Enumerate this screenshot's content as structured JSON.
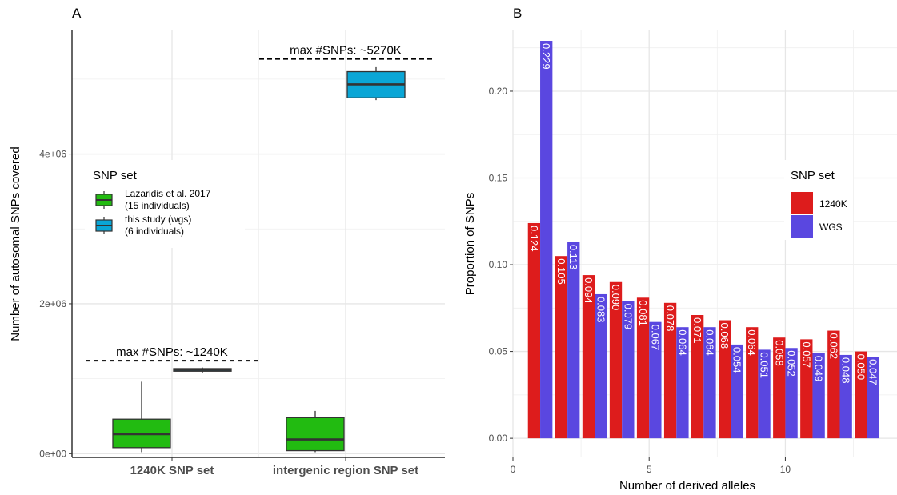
{
  "chart_data": [
    {
      "panel": "A",
      "type": "boxplot",
      "ylabel": "Number of autosomal SNPs covered",
      "ylim": [
        -50000,
        5650000
      ],
      "yticks": [
        0,
        2000000,
        4000000
      ],
      "ytick_labels": [
        "0e+00",
        "2e+06",
        "4e+06"
      ],
      "categories": [
        "1240K SNP set",
        "intergenic region SNP set"
      ],
      "grid": true,
      "legend": {
        "title": "SNP set",
        "placement": "left-middle",
        "entries": [
          {
            "line1": "Lazaridis et al. 2017",
            "line2": "(15 individuals)",
            "color": "#22bb11"
          },
          {
            "line1": "this study (wgs)",
            "line2": "(6 individuals)",
            "color": "#0aa6d6"
          }
        ]
      },
      "series": [
        {
          "legend_index": 0,
          "color": "#22bb11",
          "boxes": [
            {
              "category": 0,
              "min": 20000,
              "q1": 80000,
              "median": 260000,
              "q3": 460000,
              "max": 960000
            },
            {
              "category": 1,
              "min": 20000,
              "q1": 40000,
              "median": 190000,
              "q3": 480000,
              "max": 570000
            }
          ]
        },
        {
          "legend_index": 1,
          "color": "#0aa6d6",
          "boxes": [
            {
              "category": 0,
              "min": 1080000,
              "q1": 1100000,
              "median": 1120000,
              "q3": 1135000,
              "max": 1150000
            },
            {
              "category": 1,
              "min": 4720000,
              "q1": 4750000,
              "median": 4930000,
              "q3": 5100000,
              "max": 5160000
            }
          ]
        }
      ],
      "annotations": [
        {
          "text": "max #SNPs: ~1240K",
          "category": 0,
          "y": 1240000
        },
        {
          "text": "max #SNPs: ~5270K",
          "category": 1,
          "y": 5270000
        }
      ]
    },
    {
      "panel": "B",
      "type": "bar",
      "xlabel": "Number of derived alleles",
      "ylabel": "Proportion of SNPs",
      "xlim": [
        0,
        14.1
      ],
      "ylim": [
        -0.011,
        0.235
      ],
      "xticks": [
        0,
        5,
        10
      ],
      "yticks": [
        0.0,
        0.05,
        0.1,
        0.15,
        0.2
      ],
      "ytick_labels": [
        "0.00",
        "0.05",
        "0.10",
        "0.15",
        "0.20"
      ],
      "x": [
        1,
        2,
        3,
        4,
        5,
        6,
        7,
        8,
        9,
        10,
        11,
        12,
        13
      ],
      "grid": true,
      "legend": {
        "title": "SNP set",
        "placement": "right-middle"
      },
      "series": [
        {
          "name": "1240K",
          "color": "#dd1c1c",
          "values": [
            0.124,
            0.105,
            0.094,
            0.09,
            0.081,
            0.078,
            0.071,
            0.068,
            0.064,
            0.058,
            0.057,
            0.062,
            0.05
          ],
          "labels": [
            "0.124",
            "0.105",
            "0.094",
            "0.090",
            "0.081",
            "0.078",
            "0.071",
            "0.068",
            "0.064",
            "0.058",
            "0.057",
            "0.062",
            "0.050"
          ]
        },
        {
          "name": "WGS",
          "color": "#5a47e0",
          "values": [
            0.229,
            0.113,
            0.083,
            0.079,
            0.067,
            0.064,
            0.064,
            0.054,
            0.051,
            0.052,
            0.049,
            0.048,
            0.047
          ],
          "labels": [
            "0.229",
            "0.113",
            "0.083",
            "0.079",
            "0.067",
            "0.064",
            "0.064",
            "0.054",
            "0.051",
            "0.052",
            "0.049",
            "0.048",
            "0.047"
          ]
        }
      ]
    }
  ]
}
